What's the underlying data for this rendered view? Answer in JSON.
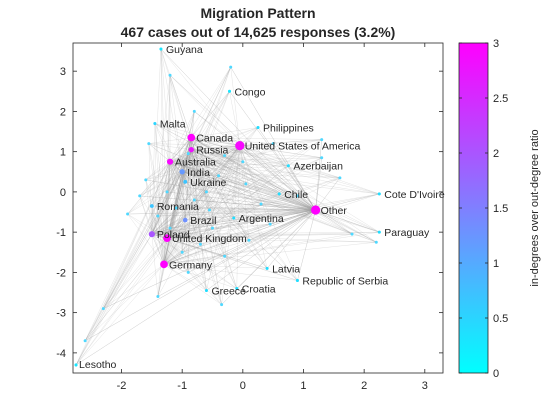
{
  "chart_data": {
    "type": "network",
    "title": "Migration Pattern",
    "subtitle": "467 cases out of 14,625 responses (3.2%)",
    "xlim": [
      -2.8,
      3.3
    ],
    "ylim": [
      -4.5,
      3.7
    ],
    "xticks": [
      -2,
      -1,
      0,
      1,
      2,
      3
    ],
    "yticks": [
      -4,
      -3,
      -2,
      -1,
      0,
      1,
      2,
      3
    ],
    "colorbar": {
      "label": "in-degrees over out-degree ratio",
      "range": [
        0,
        3
      ],
      "ticks": [
        0,
        0.5,
        1,
        1.5,
        2,
        2.5,
        3
      ],
      "colormap": [
        "#00ffff",
        "#ff00ff"
      ]
    },
    "hub": "Other",
    "labeled_nodes": [
      {
        "name": "Guyana",
        "x": -1.35,
        "y": 3.55,
        "ratio": 0.3,
        "size": 2
      },
      {
        "name": "Congo",
        "x": -0.22,
        "y": 2.5,
        "ratio": 0.3,
        "size": 2
      },
      {
        "name": "Malta",
        "x": -1.45,
        "y": 1.7,
        "ratio": 0.5,
        "size": 2
      },
      {
        "name": "Canada",
        "x": -0.85,
        "y": 1.35,
        "ratio": 3.0,
        "size": 5
      },
      {
        "name": "Russia",
        "x": -0.85,
        "y": 1.05,
        "ratio": 2.8,
        "size": 3.5
      },
      {
        "name": "Philippines",
        "x": 0.25,
        "y": 1.6,
        "ratio": 0.4,
        "size": 2
      },
      {
        "name": "United States of America",
        "x": -0.05,
        "y": 1.15,
        "ratio": 2.9,
        "size": 6
      },
      {
        "name": "Australia",
        "x": -1.2,
        "y": 0.75,
        "ratio": 2.9,
        "size": 4
      },
      {
        "name": "India",
        "x": -1.0,
        "y": 0.5,
        "ratio": 1.2,
        "size": 3.5
      },
      {
        "name": "Ukraine",
        "x": -0.95,
        "y": 0.25,
        "ratio": 0.7,
        "size": 2.5
      },
      {
        "name": "Azerbaijan",
        "x": 0.75,
        "y": 0.65,
        "ratio": 0.4,
        "size": 2
      },
      {
        "name": "Chile",
        "x": 0.6,
        "y": -0.05,
        "ratio": 0.4,
        "size": 2
      },
      {
        "name": "Cote D'Ivoire",
        "x": 2.25,
        "y": -0.05,
        "ratio": 0.4,
        "size": 2
      },
      {
        "name": "Romania",
        "x": -1.5,
        "y": -0.35,
        "ratio": 0.7,
        "size": 2.5
      },
      {
        "name": "Other",
        "x": 1.2,
        "y": -0.45,
        "ratio": 3.0,
        "size": 6
      },
      {
        "name": "Brazil",
        "x": -0.95,
        "y": -0.7,
        "ratio": 1.3,
        "size": 3
      },
      {
        "name": "Argentina",
        "x": -0.15,
        "y": -0.65,
        "ratio": 0.4,
        "size": 2
      },
      {
        "name": "Paraguay",
        "x": 2.25,
        "y": -1.0,
        "ratio": 0.4,
        "size": 2
      },
      {
        "name": "Poland",
        "x": -1.5,
        "y": -1.05,
        "ratio": 2.0,
        "size": 4
      },
      {
        "name": "United Kingdom",
        "x": -1.25,
        "y": -1.15,
        "ratio": 3.0,
        "size": 5
      },
      {
        "name": "Germany",
        "x": -1.3,
        "y": -1.8,
        "ratio": 3.0,
        "size": 5
      },
      {
        "name": "Latvia",
        "x": 0.4,
        "y": -1.9,
        "ratio": 0.4,
        "size": 2
      },
      {
        "name": "Republic of Serbia",
        "x": 0.9,
        "y": -2.2,
        "ratio": 0.4,
        "size": 2
      },
      {
        "name": "Greece",
        "x": -0.6,
        "y": -2.45,
        "ratio": 0.4,
        "size": 2
      },
      {
        "name": "Croatia",
        "x": -0.1,
        "y": -2.4,
        "ratio": 0.4,
        "size": 2
      },
      {
        "name": "Lesotho",
        "x": -2.75,
        "y": -4.3,
        "ratio": 0.3,
        "size": 2
      }
    ],
    "unlabeled_nodes": [
      [
        -1.7,
        -0.1
      ],
      [
        -1.6,
        0.3
      ],
      [
        -1.4,
        -0.6
      ],
      [
        -1.2,
        -0.9
      ],
      [
        -1.1,
        -0.4
      ],
      [
        -0.8,
        -0.2
      ],
      [
        -0.6,
        0.0
      ],
      [
        -0.5,
        -0.9
      ],
      [
        -0.7,
        -1.3
      ],
      [
        -1.0,
        -1.5
      ],
      [
        -0.4,
        0.4
      ],
      [
        -0.3,
        0.9
      ],
      [
        0.05,
        0.2
      ],
      [
        0.3,
        -0.3
      ],
      [
        0.1,
        -1.2
      ],
      [
        -0.3,
        -1.6
      ],
      [
        -0.9,
        -2.0
      ],
      [
        -1.4,
        -2.6
      ],
      [
        -2.3,
        -2.9
      ],
      [
        -2.6,
        -3.7
      ],
      [
        0.5,
        1.2
      ],
      [
        1.3,
        1.3
      ],
      [
        1.3,
        0.85
      ],
      [
        1.6,
        0.35
      ],
      [
        2.2,
        -1.25
      ],
      [
        1.8,
        -1.05
      ],
      [
        0.9,
        -0.1
      ],
      [
        -0.2,
        3.1
      ],
      [
        -1.2,
        2.9
      ],
      [
        -0.8,
        2.0
      ],
      [
        -0.35,
        -2.8
      ],
      [
        0.0,
        0.75
      ],
      [
        -1.25,
        0.0
      ],
      [
        -0.55,
        -0.45
      ],
      [
        0.45,
        -0.8
      ],
      [
        -0.9,
        0.95
      ],
      [
        -1.55,
        1.2
      ],
      [
        -1.9,
        -0.55
      ]
    ]
  }
}
